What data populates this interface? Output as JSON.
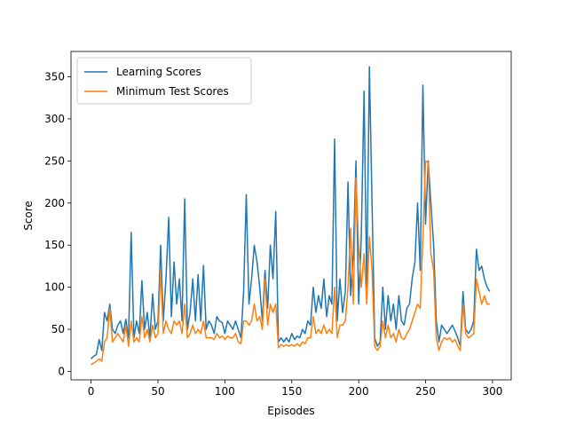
{
  "chart_data": {
    "type": "line",
    "x_label": "Episodes",
    "y_label": "Score",
    "x": [
      0,
      2,
      4,
      6,
      8,
      10,
      12,
      14,
      16,
      18,
      20,
      22,
      24,
      26,
      28,
      30,
      32,
      34,
      36,
      38,
      40,
      42,
      44,
      46,
      48,
      50,
      52,
      54,
      56,
      58,
      60,
      62,
      64,
      66,
      68,
      70,
      72,
      74,
      76,
      78,
      80,
      82,
      84,
      86,
      88,
      90,
      92,
      94,
      96,
      98,
      100,
      102,
      104,
      106,
      108,
      110,
      112,
      114,
      116,
      118,
      120,
      122,
      124,
      126,
      128,
      130,
      132,
      134,
      136,
      138,
      140,
      142,
      144,
      146,
      148,
      150,
      152,
      154,
      156,
      158,
      160,
      162,
      164,
      166,
      168,
      170,
      172,
      174,
      176,
      178,
      180,
      182,
      184,
      186,
      188,
      190,
      192,
      194,
      196,
      198,
      200,
      202,
      204,
      206,
      208,
      210,
      212,
      214,
      216,
      218,
      220,
      222,
      224,
      226,
      228,
      230,
      232,
      234,
      236,
      238,
      240,
      242,
      244,
      246,
      248,
      250,
      252,
      254,
      256,
      258,
      260,
      262,
      264,
      266,
      268,
      270,
      272,
      274,
      276,
      278,
      280,
      282,
      284,
      286,
      288,
      290,
      292,
      294,
      296,
      298
    ],
    "series": [
      {
        "name": "Learning Scores",
        "color": "#1f77b4",
        "values": [
          15,
          18,
          20,
          38,
          25,
          70,
          60,
          80,
          50,
          45,
          55,
          60,
          45,
          62,
          40,
          165,
          40,
          60,
          45,
          108,
          50,
          70,
          40,
          92,
          50,
          60,
          150,
          60,
          110,
          183,
          65,
          130,
          80,
          110,
          60,
          205,
          50,
          70,
          110,
          60,
          115,
          60,
          126,
          50,
          60,
          55,
          45,
          65,
          60,
          58,
          45,
          60,
          55,
          50,
          60,
          50,
          40,
          95,
          210,
          80,
          110,
          150,
          130,
          100,
          60,
          120,
          75,
          150,
          110,
          190,
          35,
          40,
          35,
          40,
          35,
          45,
          38,
          42,
          40,
          50,
          45,
          60,
          55,
          100,
          70,
          90,
          75,
          110,
          65,
          90,
          80,
          276,
          60,
          110,
          70,
          95,
          225,
          90,
          140,
          250,
          80,
          160,
          333,
          100,
          362,
          200,
          40,
          30,
          35,
          100,
          50,
          90,
          60,
          80,
          50,
          90,
          60,
          55,
          75,
          80,
          110,
          130,
          200,
          120,
          340,
          175,
          250,
          200,
          150,
          60,
          35,
          55,
          50,
          45,
          50,
          55,
          48,
          40,
          30,
          95,
          50,
          45,
          50,
          60,
          145,
          120,
          125,
          110,
          100,
          95
        ]
      },
      {
        "name": "Minimum Test Scores",
        "color": "#ff7f0e",
        "values": [
          8,
          10,
          12,
          15,
          12,
          35,
          40,
          75,
          35,
          40,
          45,
          40,
          35,
          55,
          30,
          60,
          35,
          40,
          35,
          65,
          40,
          50,
          35,
          55,
          40,
          45,
          120,
          45,
          60,
          50,
          45,
          60,
          55,
          60,
          45,
          80,
          40,
          45,
          55,
          45,
          50,
          45,
          60,
          40,
          40,
          40,
          38,
          45,
          40,
          42,
          38,
          42,
          40,
          40,
          45,
          35,
          33,
          60,
          60,
          55,
          60,
          80,
          60,
          65,
          50,
          110,
          55,
          80,
          70,
          80,
          28,
          32,
          30,
          32,
          30,
          32,
          30,
          33,
          30,
          35,
          33,
          40,
          40,
          65,
          45,
          50,
          45,
          55,
          45,
          50,
          45,
          100,
          40,
          55,
          55,
          60,
          100,
          170,
          80,
          230,
          150,
          100,
          140,
          80,
          160,
          120,
          30,
          25,
          30,
          60,
          40,
          55,
          40,
          45,
          35,
          50,
          40,
          38,
          45,
          50,
          60,
          70,
          80,
          75,
          160,
          250,
          248,
          140,
          120,
          40,
          25,
          35,
          40,
          38,
          40,
          35,
          38,
          30,
          25,
          80,
          45,
          40,
          42,
          45,
          110,
          95,
          80,
          90,
          80,
          80
        ]
      }
    ],
    "xlim": [
      -15,
      314
    ],
    "ylim": [
      -10,
      380
    ],
    "xticks": [
      0,
      50,
      100,
      150,
      200,
      250,
      300
    ],
    "yticks": [
      0,
      50,
      100,
      150,
      200,
      250,
      300,
      350
    ],
    "legend": "upper left"
  }
}
